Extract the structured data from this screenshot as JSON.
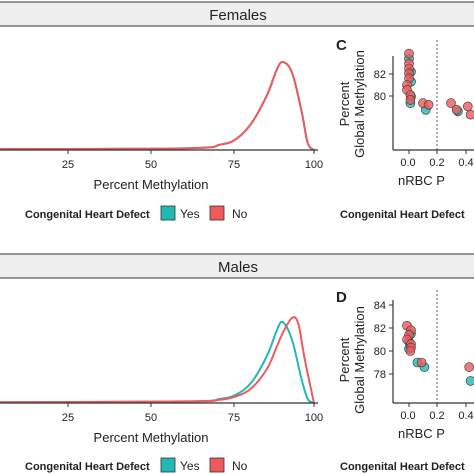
{
  "colors": {
    "yes": "#22b8b4",
    "no": "#ef5a5d",
    "banner_fill": "#eeeeee"
  },
  "banners": [
    {
      "title": "Females"
    },
    {
      "title": "Males"
    }
  ],
  "panels": [
    {
      "x_axis": {
        "ticks": [
          "25",
          "50",
          "75",
          "100"
        ],
        "title": "Percent Methylation"
      },
      "legend": {
        "title": "Congenital Heart Defect",
        "labels": [
          "Yes",
          "No"
        ]
      },
      "side": {
        "letter": "C",
        "y_title": [
          "Percent",
          "Global Methylation"
        ],
        "y_ticks": [
          "80",
          "82"
        ],
        "x_ticks": [
          "0.0",
          "0.2",
          "0.4"
        ],
        "x_title": "nRBC P",
        "legend_title": "Congenital Heart Defect"
      }
    },
    {
      "x_axis": {
        "ticks": [
          "25",
          "50",
          "75",
          "100"
        ],
        "title": "Percent Methylation"
      },
      "legend": {
        "title": "Congenital Heart Defect",
        "labels": [
          "Yes",
          "No"
        ]
      },
      "side": {
        "letter": "D",
        "y_title": [
          "Percent",
          "Global Methylation"
        ],
        "y_ticks": [
          "84",
          "82",
          "80",
          "78"
        ],
        "x_ticks": [
          "0.0",
          "0.2",
          "0.4"
        ],
        "x_title": "nRBC P",
        "legend_title": "Congenital Heart Defect"
      }
    }
  ],
  "chart_data": [
    {
      "type": "area",
      "subset": "Females",
      "xlabel": "Percent Methylation",
      "xlim": [
        0,
        100
      ],
      "series": [
        {
          "name": "Yes",
          "color": "#22b8b4",
          "x": [
            0,
            60,
            70,
            75,
            80,
            85,
            88,
            90,
            93,
            96,
            98,
            100
          ],
          "y": [
            0.01,
            0.02,
            0.06,
            0.12,
            0.3,
            0.62,
            0.9,
            1.0,
            0.88,
            0.45,
            0.08,
            0.0
          ]
        },
        {
          "name": "No",
          "color": "#ef5a5d",
          "x": [
            0,
            60,
            70,
            75,
            80,
            85,
            88,
            90,
            93,
            96,
            98,
            100
          ],
          "y": [
            0.01,
            0.02,
            0.06,
            0.12,
            0.3,
            0.62,
            0.9,
            1.0,
            0.88,
            0.45,
            0.08,
            0.0
          ]
        }
      ]
    },
    {
      "type": "scatter",
      "panel": "C",
      "ylabel": "Percent Global Methylation",
      "ylim": [
        79,
        83
      ],
      "xlim": [
        -0.05,
        0.45
      ],
      "x_ticks": [
        0.0,
        0.2,
        0.4
      ],
      "y_ticks": [
        80,
        82
      ],
      "series": [
        {
          "name": "Yes",
          "color": "#22b8b4",
          "points": [
            [
              0,
              82.6
            ],
            [
              0,
              81.8
            ],
            [
              0,
              81.2
            ],
            [
              0,
              80.3
            ],
            [
              0.01,
              79.9
            ],
            [
              0.12,
              79.5
            ],
            [
              0.35,
              79.4
            ]
          ]
        },
        {
          "name": "No",
          "color": "#ef5a5d",
          "points": [
            [
              0,
              82.9
            ],
            [
              0,
              82.3
            ],
            [
              0,
              82.0
            ],
            [
              0,
              81.7
            ],
            [
              0,
              81.4
            ],
            [
              0,
              81.0
            ],
            [
              0,
              80.7
            ],
            [
              0.01,
              80.4
            ],
            [
              0.01,
              80.1
            ],
            [
              0.1,
              79.9
            ],
            [
              0.14,
              79.8
            ],
            [
              0.3,
              79.9
            ],
            [
              0.34,
              79.5
            ],
            [
              0.42,
              79.7
            ],
            [
              0.44,
              79.2
            ]
          ]
        }
      ]
    },
    {
      "type": "area",
      "subset": "Males",
      "xlabel": "Percent Methylation",
      "xlim": [
        0,
        100
      ],
      "series": [
        {
          "name": "Yes",
          "color": "#22b8b4",
          "x": [
            0,
            60,
            70,
            75,
            80,
            85,
            88,
            90,
            93,
            96,
            98,
            100
          ],
          "y": [
            0.01,
            0.02,
            0.05,
            0.1,
            0.25,
            0.58,
            0.88,
            1.0,
            0.78,
            0.3,
            0.05,
            0.0
          ]
        },
        {
          "name": "No",
          "color": "#ef5a5d",
          "x": [
            0,
            60,
            70,
            75,
            80,
            85,
            88,
            90,
            93,
            95,
            97,
            100
          ],
          "y": [
            0.01,
            0.02,
            0.04,
            0.08,
            0.18,
            0.42,
            0.68,
            0.86,
            1.05,
            0.98,
            0.55,
            0.0
          ]
        }
      ]
    },
    {
      "type": "scatter",
      "panel": "D",
      "ylabel": "Percent Global Methylation",
      "ylim": [
        76,
        84
      ],
      "xlim": [
        -0.05,
        0.45
      ],
      "x_ticks": [
        0.0,
        0.2,
        0.4
      ],
      "y_ticks": [
        84,
        82,
        80,
        78
      ],
      "series": [
        {
          "name": "Yes",
          "color": "#22b8b4",
          "points": [
            [
              0,
              81.5
            ],
            [
              0,
              80.8
            ],
            [
              0,
              80.2
            ],
            [
              0.06,
              79.0
            ],
            [
              0.11,
              78.6
            ],
            [
              0.44,
              77.4
            ]
          ]
        },
        {
          "name": "No",
          "color": "#ef5a5d",
          "points": [
            [
              0,
              82.2
            ],
            [
              0,
              81.8
            ],
            [
              0,
              81.4
            ],
            [
              0,
              81.0
            ],
            [
              0,
              80.6
            ],
            [
              0,
              80.3
            ],
            [
              0.01,
              80.0
            ],
            [
              0.09,
              79.0
            ],
            [
              0.43,
              78.6
            ]
          ]
        }
      ]
    }
  ]
}
